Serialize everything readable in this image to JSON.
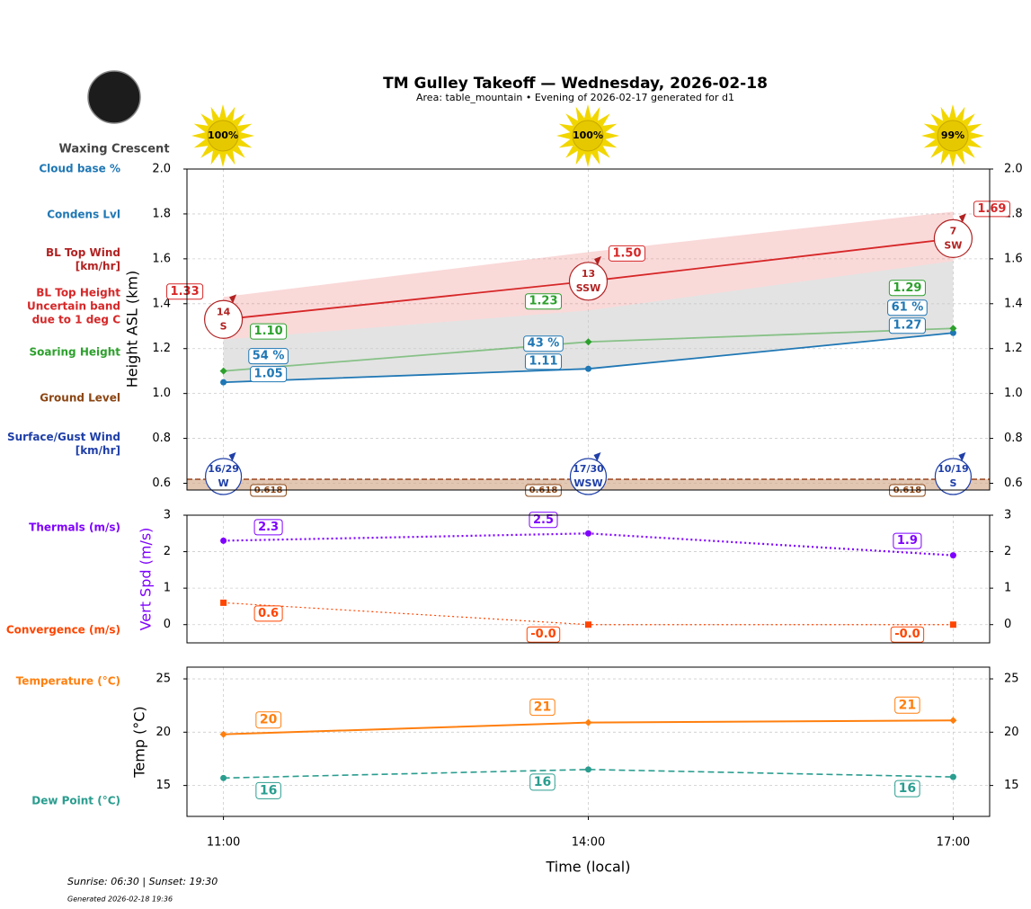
{
  "header": {
    "title": "TM Gulley Takeoff — Wednesday, 2026-02-18",
    "subtitle": "Area: table_mountain • Evening of 2026-02-17 generated for d1"
  },
  "moon_phase": "Waxing Crescent",
  "sun": {
    "values": [
      100,
      100,
      99
    ],
    "value_labels": [
      "100%",
      "100%",
      "99%"
    ]
  },
  "footer": {
    "sun_times": "Sunrise: 06:30 | Sunset: 19:30",
    "generated": "Generated 2026-02-18 19:36"
  },
  "chart_data": [
    {
      "type": "line",
      "y_label": "Height ASL (km)",
      "x": [
        11,
        14,
        17
      ],
      "xlim": [
        10.7,
        17.3
      ],
      "xticks": [
        {
          "value": 11,
          "label": "11:00"
        },
        {
          "value": 14,
          "label": "14:00"
        },
        {
          "value": 17,
          "label": "17:00"
        }
      ],
      "ylim": [
        0.57,
        2.0
      ],
      "yticks": [
        {
          "value": 0.6,
          "label": "0.6"
        },
        {
          "value": 0.8,
          "label": "0.8"
        },
        {
          "value": 1.0,
          "label": "1.0"
        },
        {
          "value": 1.2,
          "label": "1.2"
        },
        {
          "value": 1.4,
          "label": "1.4"
        },
        {
          "value": 1.6,
          "label": "1.6"
        },
        {
          "value": 1.8,
          "label": "1.8"
        },
        {
          "value": 2.0,
          "label": "2.0"
        }
      ],
      "grid": true,
      "right_ticks": true,
      "series": [
        {
          "name": "Cloud base %",
          "color": "#1f77b4",
          "style": "labels",
          "values": [
            54,
            43,
            61
          ],
          "value_labels": [
            "54 %",
            "43 %",
            "61 %"
          ]
        },
        {
          "name": "Condens Lvl",
          "color": "#1f77b4",
          "style": "line",
          "line": "solid",
          "marker": "circle",
          "values": [
            1.05,
            1.11,
            1.27
          ],
          "value_labels": [
            "1.05",
            "1.11",
            "1.27"
          ]
        },
        {
          "name": "BL Top Wind\n[km/hr]",
          "color": "#b22222",
          "style": "wind",
          "values": [
            14,
            13,
            7
          ],
          "directions": [
            "S",
            "SSW",
            "SW"
          ],
          "value_labels": [
            "14",
            "13",
            "7"
          ]
        },
        {
          "name": "BL Top Height\nUncertain band\ndue to 1 deg C",
          "color": "#d62728",
          "style": "band",
          "line": "solid",
          "values": [
            1.33,
            1.5,
            1.69
          ],
          "value_labels": [
            "1.33",
            "1.50",
            "1.69"
          ],
          "upper": [
            1.43,
            1.63,
            1.81
          ],
          "lower": [
            1.24,
            1.37,
            1.59
          ]
        },
        {
          "name": "Soaring Height",
          "color": "#2ca02c",
          "style": "line",
          "line": "solid",
          "marker": "diamond",
          "line_opacity": 0.5,
          "values": [
            1.1,
            1.23,
            1.29
          ],
          "value_labels": [
            "1.10",
            "1.23",
            "1.29"
          ]
        },
        {
          "name": "Ground Level",
          "color": "#8b4513",
          "style": "ground",
          "values": [
            0.618,
            0.618,
            0.618
          ],
          "value_labels": [
            "0.618",
            "0.618",
            "0.618"
          ]
        },
        {
          "name": "Surface/Gust Wind\n[km/hr]",
          "color": "#1f3fa8",
          "style": "wind",
          "values": [
            16,
            17,
            10
          ],
          "gusts": [
            29,
            30,
            19
          ],
          "directions": [
            "W",
            "WSW",
            "S"
          ],
          "value_labels": [
            "16/29",
            "17/30",
            "10/19"
          ]
        }
      ]
    },
    {
      "type": "line",
      "y_label": "Vert Spd (m/s)",
      "y_label_color": "#7f00ff",
      "x": [
        11,
        14,
        17
      ],
      "xlim": [
        10.7,
        17.3
      ],
      "xticks": [
        {
          "value": 11,
          "label": "11:00"
        },
        {
          "value": 14,
          "label": "14:00"
        },
        {
          "value": 17,
          "label": "17:00"
        }
      ],
      "ylim": [
        -0.5,
        3
      ],
      "yticks": [
        0,
        1,
        2,
        3
      ],
      "grid": true,
      "right_ticks": true,
      "series": [
        {
          "name": "Thermals (m/s)",
          "color": "#7f00ff",
          "style": "line",
          "line": "dotted",
          "width": 2.2,
          "marker": "circle",
          "values": [
            2.3,
            2.5,
            1.9
          ],
          "value_labels": [
            "2.3",
            "2.5",
            "1.9"
          ]
        },
        {
          "name": "Convergence (m/s)",
          "color": "#ff4500",
          "style": "line",
          "line": "dotted",
          "width": 1.2,
          "marker": "square",
          "values": [
            0.6,
            0,
            0
          ],
          "value_labels": [
            "0.6",
            "-0.0",
            "-0.0"
          ]
        }
      ]
    },
    {
      "type": "line",
      "y_label": "Temp (°C)",
      "x_label": "Time (local)",
      "x": [
        11,
        14,
        17
      ],
      "xlim": [
        10.7,
        17.3
      ],
      "xticks": [
        {
          "value": 11,
          "label": "11:00"
        },
        {
          "value": 14,
          "label": "14:00"
        },
        {
          "value": 17,
          "label": "17:00"
        }
      ],
      "ylim": [
        12.1,
        26.1
      ],
      "yticks": [
        15,
        20,
        25
      ],
      "grid": true,
      "right_ticks": true,
      "series": [
        {
          "name": "Temperature (°C)",
          "color": "#ff7f0e",
          "style": "line",
          "line": "solid",
          "width": 2,
          "marker": "diamond",
          "values": [
            19.8,
            20.9,
            21.1
          ],
          "value_labels": [
            "20",
            "21",
            "21"
          ]
        },
        {
          "name": "Dew Point (°C)",
          "color": "#2a9d8f",
          "style": "line",
          "line": "dashed",
          "width": 1.6,
          "marker": "circle",
          "values": [
            15.7,
            16.5,
            15.8
          ],
          "value_labels": [
            "16",
            "16",
            "16"
          ]
        }
      ]
    }
  ]
}
